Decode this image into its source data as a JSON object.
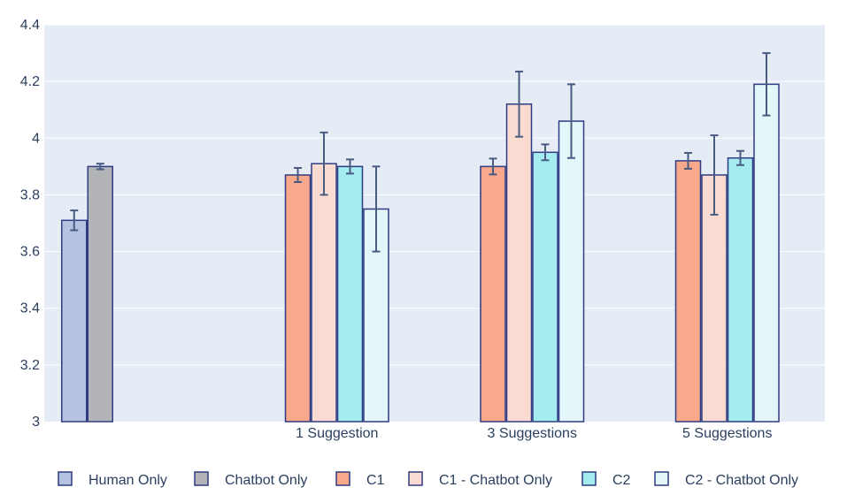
{
  "chart_data": {
    "type": "bar",
    "categories": [
      "",
      "1 Suggestion",
      "3 Suggestions",
      "5 Suggestions"
    ],
    "ylim": [
      3,
      4.4
    ],
    "yticks": [
      3,
      3.2,
      3.4,
      3.6,
      3.8,
      4,
      4.2,
      4.4
    ],
    "ytick_labels": [
      "3",
      "3.2",
      "3.4",
      "3.6",
      "3.8",
      "4",
      "4.2",
      "4.4"
    ],
    "grid": true,
    "legend_position": "bottom",
    "series": [
      {
        "name": "Human Only",
        "color": "#b5c3e3",
        "values": [
          3.71,
          null,
          null,
          null
        ],
        "errors": [
          0.035,
          null,
          null,
          null
        ]
      },
      {
        "name": "Chatbot Only",
        "color": "#b3b4b8",
        "values": [
          3.9,
          null,
          null,
          null
        ],
        "errors": [
          0.01,
          null,
          null,
          null
        ]
      },
      {
        "name": "C1",
        "color": "#f8a98b",
        "values": [
          null,
          3.87,
          3.9,
          3.92
        ],
        "errors": [
          null,
          0.025,
          0.028,
          0.028
        ]
      },
      {
        "name": "C1 - Chatbot Only",
        "color": "#f9dbd2",
        "values": [
          null,
          3.91,
          4.12,
          3.87
        ],
        "errors": [
          null,
          0.11,
          0.115,
          0.14
        ]
      },
      {
        "name": "C2",
        "color": "#a4ecf0",
        "values": [
          null,
          3.9,
          3.95,
          3.93
        ],
        "errors": [
          null,
          0.025,
          0.028,
          0.025
        ]
      },
      {
        "name": "C2 - Chatbot Only",
        "color": "#e3f7fb",
        "values": [
          null,
          3.75,
          4.06,
          4.19
        ],
        "errors": [
          null,
          0.15,
          0.13,
          0.11
        ]
      }
    ],
    "bar_border_color": "#2f3b82",
    "error_bar_color": "#4a5b82",
    "plot_bg": "#e5ecf6",
    "grid_color": "#ffffff"
  }
}
